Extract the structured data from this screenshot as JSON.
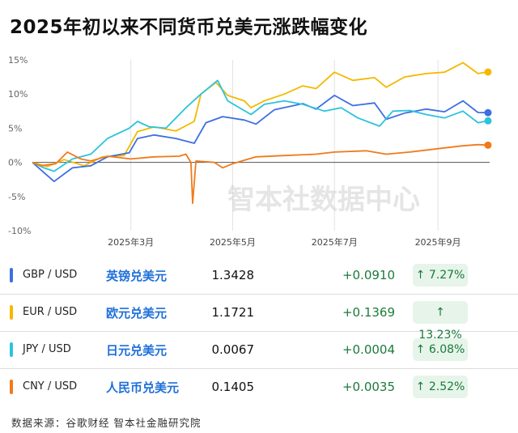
{
  "title": "2025年初以来不同货币兑美元涨跌幅变化",
  "watermark": "智本社数据中心",
  "source": "数据来源：谷歌财经 智本社金融研究院",
  "chart_data": {
    "type": "line",
    "yunit": "%",
    "ylim": [
      -10,
      15
    ],
    "yticks": [
      15,
      10,
      5,
      0,
      -5,
      -10
    ],
    "ytick_labels": [
      "15%",
      "10%",
      "5%",
      "0%",
      "-5%",
      "-10%"
    ],
    "xlim": [
      "2025-01-01",
      "2025-10-02"
    ],
    "xticks": [
      "2025-03-01",
      "2025-05-01",
      "2025-07-01",
      "2025-09-01"
    ],
    "xtick_labels": [
      "2025年3月",
      "2025年5月",
      "2025年7月",
      "2025年9月"
    ],
    "grid": "x-only",
    "series": [
      {
        "name": "EUR / USD",
        "color": "#f5b800",
        "points": [
          [
            "2025-01-01",
            0.0
          ],
          [
            "2025-01-10",
            -0.6
          ],
          [
            "2025-01-20",
            0.4
          ],
          [
            "2025-02-01",
            -0.5
          ],
          [
            "2025-02-12",
            0.8
          ],
          [
            "2025-02-25",
            1.0
          ],
          [
            "2025-03-05",
            4.5
          ],
          [
            "2025-03-15",
            5.2
          ],
          [
            "2025-03-28",
            4.6
          ],
          [
            "2025-04-08",
            6.0
          ],
          [
            "2025-04-12",
            10.0
          ],
          [
            "2025-04-21",
            11.7
          ],
          [
            "2025-04-28",
            9.8
          ],
          [
            "2025-05-08",
            9.0
          ],
          [
            "2025-05-12",
            8.0
          ],
          [
            "2025-05-20",
            9.0
          ],
          [
            "2025-06-01",
            10.0
          ],
          [
            "2025-06-12",
            11.2
          ],
          [
            "2025-06-20",
            10.8
          ],
          [
            "2025-07-01",
            13.2
          ],
          [
            "2025-07-12",
            12.0
          ],
          [
            "2025-07-25",
            12.4
          ],
          [
            "2025-08-01",
            11.0
          ],
          [
            "2025-08-12",
            12.5
          ],
          [
            "2025-08-25",
            13.0
          ],
          [
            "2025-09-05",
            13.2
          ],
          [
            "2025-09-16",
            14.6
          ],
          [
            "2025-09-25",
            13.0
          ],
          [
            "2025-10-01",
            13.23
          ]
        ]
      },
      {
        "name": "GBP / USD",
        "color": "#3d6fe0",
        "points": [
          [
            "2025-01-01",
            0.0
          ],
          [
            "2025-01-08",
            -1.5
          ],
          [
            "2025-01-14",
            -2.8
          ],
          [
            "2025-01-25",
            -0.8
          ],
          [
            "2025-02-05",
            -0.5
          ],
          [
            "2025-02-15",
            0.8
          ],
          [
            "2025-02-28",
            1.4
          ],
          [
            "2025-03-05",
            3.5
          ],
          [
            "2025-03-15",
            4.0
          ],
          [
            "2025-03-28",
            3.5
          ],
          [
            "2025-04-08",
            2.8
          ],
          [
            "2025-04-15",
            5.8
          ],
          [
            "2025-04-25",
            6.7
          ],
          [
            "2025-05-08",
            6.2
          ],
          [
            "2025-05-15",
            5.6
          ],
          [
            "2025-05-26",
            7.7
          ],
          [
            "2025-06-12",
            8.6
          ],
          [
            "2025-06-20",
            7.8
          ],
          [
            "2025-07-01",
            9.8
          ],
          [
            "2025-07-12",
            8.3
          ],
          [
            "2025-07-25",
            8.7
          ],
          [
            "2025-08-01",
            6.3
          ],
          [
            "2025-08-12",
            7.2
          ],
          [
            "2025-08-25",
            7.8
          ],
          [
            "2025-09-05",
            7.4
          ],
          [
            "2025-09-16",
            9.0
          ],
          [
            "2025-09-25",
            7.3
          ],
          [
            "2025-10-01",
            7.27
          ]
        ]
      },
      {
        "name": "JPY / USD",
        "color": "#2cc3de",
        "points": [
          [
            "2025-01-01",
            0.0
          ],
          [
            "2025-01-08",
            -0.8
          ],
          [
            "2025-01-14",
            -1.3
          ],
          [
            "2025-01-25",
            0.5
          ],
          [
            "2025-02-05",
            1.2
          ],
          [
            "2025-02-15",
            3.5
          ],
          [
            "2025-02-28",
            5.0
          ],
          [
            "2025-03-05",
            6.0
          ],
          [
            "2025-03-12",
            5.2
          ],
          [
            "2025-03-22",
            5.0
          ],
          [
            "2025-04-03",
            8.0
          ],
          [
            "2025-04-12",
            10.0
          ],
          [
            "2025-04-22",
            12.0
          ],
          [
            "2025-04-28",
            9.0
          ],
          [
            "2025-05-12",
            7.0
          ],
          [
            "2025-05-20",
            8.5
          ],
          [
            "2025-06-01",
            9.0
          ],
          [
            "2025-06-12",
            8.5
          ],
          [
            "2025-06-25",
            7.5
          ],
          [
            "2025-07-05",
            8.0
          ],
          [
            "2025-07-15",
            6.5
          ],
          [
            "2025-07-28",
            5.3
          ],
          [
            "2025-08-05",
            7.5
          ],
          [
            "2025-08-15",
            7.6
          ],
          [
            "2025-08-25",
            7.0
          ],
          [
            "2025-09-05",
            6.5
          ],
          [
            "2025-09-16",
            7.5
          ],
          [
            "2025-09-25",
            5.8
          ],
          [
            "2025-10-01",
            6.08
          ]
        ]
      },
      {
        "name": "CNY / USD",
        "color": "#f07a1a",
        "points": [
          [
            "2025-01-01",
            0.0
          ],
          [
            "2025-01-06",
            -0.5
          ],
          [
            "2025-01-15",
            -0.2
          ],
          [
            "2025-01-22",
            1.5
          ],
          [
            "2025-01-30",
            0.5
          ],
          [
            "2025-02-05",
            0.2
          ],
          [
            "2025-02-15",
            0.9
          ],
          [
            "2025-03-01",
            0.5
          ],
          [
            "2025-03-15",
            0.8
          ],
          [
            "2025-03-30",
            0.9
          ],
          [
            "2025-04-03",
            1.2
          ],
          [
            "2025-04-06",
            0.0
          ],
          [
            "2025-04-07",
            -6.0
          ],
          [
            "2025-04-09",
            0.2
          ],
          [
            "2025-04-20",
            0.0
          ],
          [
            "2025-04-25",
            -0.8
          ],
          [
            "2025-05-01",
            -0.2
          ],
          [
            "2025-05-15",
            0.8
          ],
          [
            "2025-06-01",
            1.0
          ],
          [
            "2025-06-20",
            1.2
          ],
          [
            "2025-07-01",
            1.5
          ],
          [
            "2025-07-20",
            1.7
          ],
          [
            "2025-08-01",
            1.2
          ],
          [
            "2025-08-15",
            1.5
          ],
          [
            "2025-09-01",
            2.0
          ],
          [
            "2025-09-15",
            2.4
          ],
          [
            "2025-09-25",
            2.6
          ],
          [
            "2025-10-01",
            2.52
          ]
        ]
      }
    ]
  },
  "table": {
    "rows": [
      {
        "pair": "GBP / USD",
        "cn": "英镑兑美元",
        "rate": "1.3428",
        "change": "+0.0910",
        "pct": "↑ 7.27%",
        "color": "#3d6fe0"
      },
      {
        "pair": "EUR / USD",
        "cn": "欧元兑美元",
        "rate": "1.1721",
        "change": "+0.1369",
        "pct": "↑ 13.23%",
        "color": "#f5b800"
      },
      {
        "pair": "JPY / USD",
        "cn": "日元兑美元",
        "rate": "0.0067",
        "change": "+0.0004",
        "pct": "↑ 6.08%",
        "color": "#2cc3de"
      },
      {
        "pair": "CNY / USD",
        "cn": "人民币兑美元",
        "rate": "0.1405",
        "change": "+0.0035",
        "pct": "↑ 2.52%",
        "color": "#f07a1a"
      }
    ]
  }
}
